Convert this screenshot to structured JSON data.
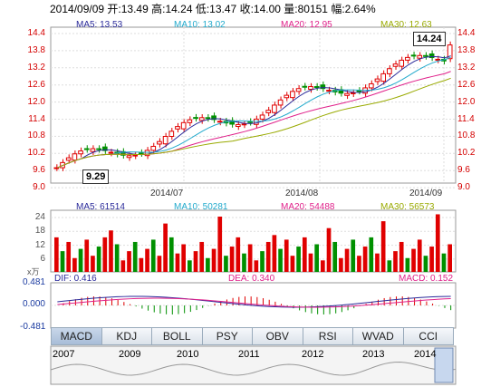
{
  "header": {
    "date": "2014/09/09",
    "open_label": "开:13.49",
    "high_label": "高:14.24",
    "low_label": "低:13.47",
    "close_label": "收:14.00",
    "volume_label": "量:80151",
    "change_label": "幅:2.64%"
  },
  "price_panel": {
    "ma5": "MA5: 13.53",
    "ma10": "MA10: 13.02",
    "ma20": "MA20: 12.95",
    "ma30": "MA30: 12.63",
    "left_ticks": [
      "14.4",
      "13.8",
      "13.2",
      "12.6",
      "12.0",
      "11.4",
      "10.8",
      "10.2",
      "9.6",
      "9.0"
    ],
    "right_ticks": [
      "14.4",
      "13.8",
      "13.2",
      "12.6",
      "12.0",
      "11.4",
      "10.8",
      "10.2",
      "9.6",
      "9.0"
    ],
    "max_callout": "14.24",
    "min_callout": "9.29",
    "date_ticks": [
      "2014/07",
      "2014/08",
      "2014/09"
    ]
  },
  "volume_panel": {
    "ma5": "MA5: 61514",
    "ma10": "MA10: 50281",
    "ma20": "MA20: 54488",
    "ma30": "MA30: 56573",
    "ticks": [
      "24",
      "18",
      "12",
      "6"
    ],
    "unit": "x万"
  },
  "macd_panel": {
    "dif": "DIF: 0.416",
    "dea": "DEA: 0.340",
    "macd": "MACD: 0.152",
    "ticks": [
      "0.481",
      "0.000",
      "-0.481"
    ]
  },
  "tabs": [
    "MACD",
    "KDJ",
    "BOLL",
    "PSY",
    "OBV",
    "RSI",
    "WVAD",
    "CCI"
  ],
  "active_tab": "MACD",
  "timeline": {
    "years": [
      "2007",
      "2009",
      "2010",
      "2011",
      "2012",
      "2013",
      "2014"
    ]
  },
  "colors": {
    "up": "#e00000",
    "down": "#009000",
    "ma5": "#2a2a9a",
    "ma10": "#22aacc",
    "ma20": "#e0208a",
    "ma30": "#99aa00"
  }
}
